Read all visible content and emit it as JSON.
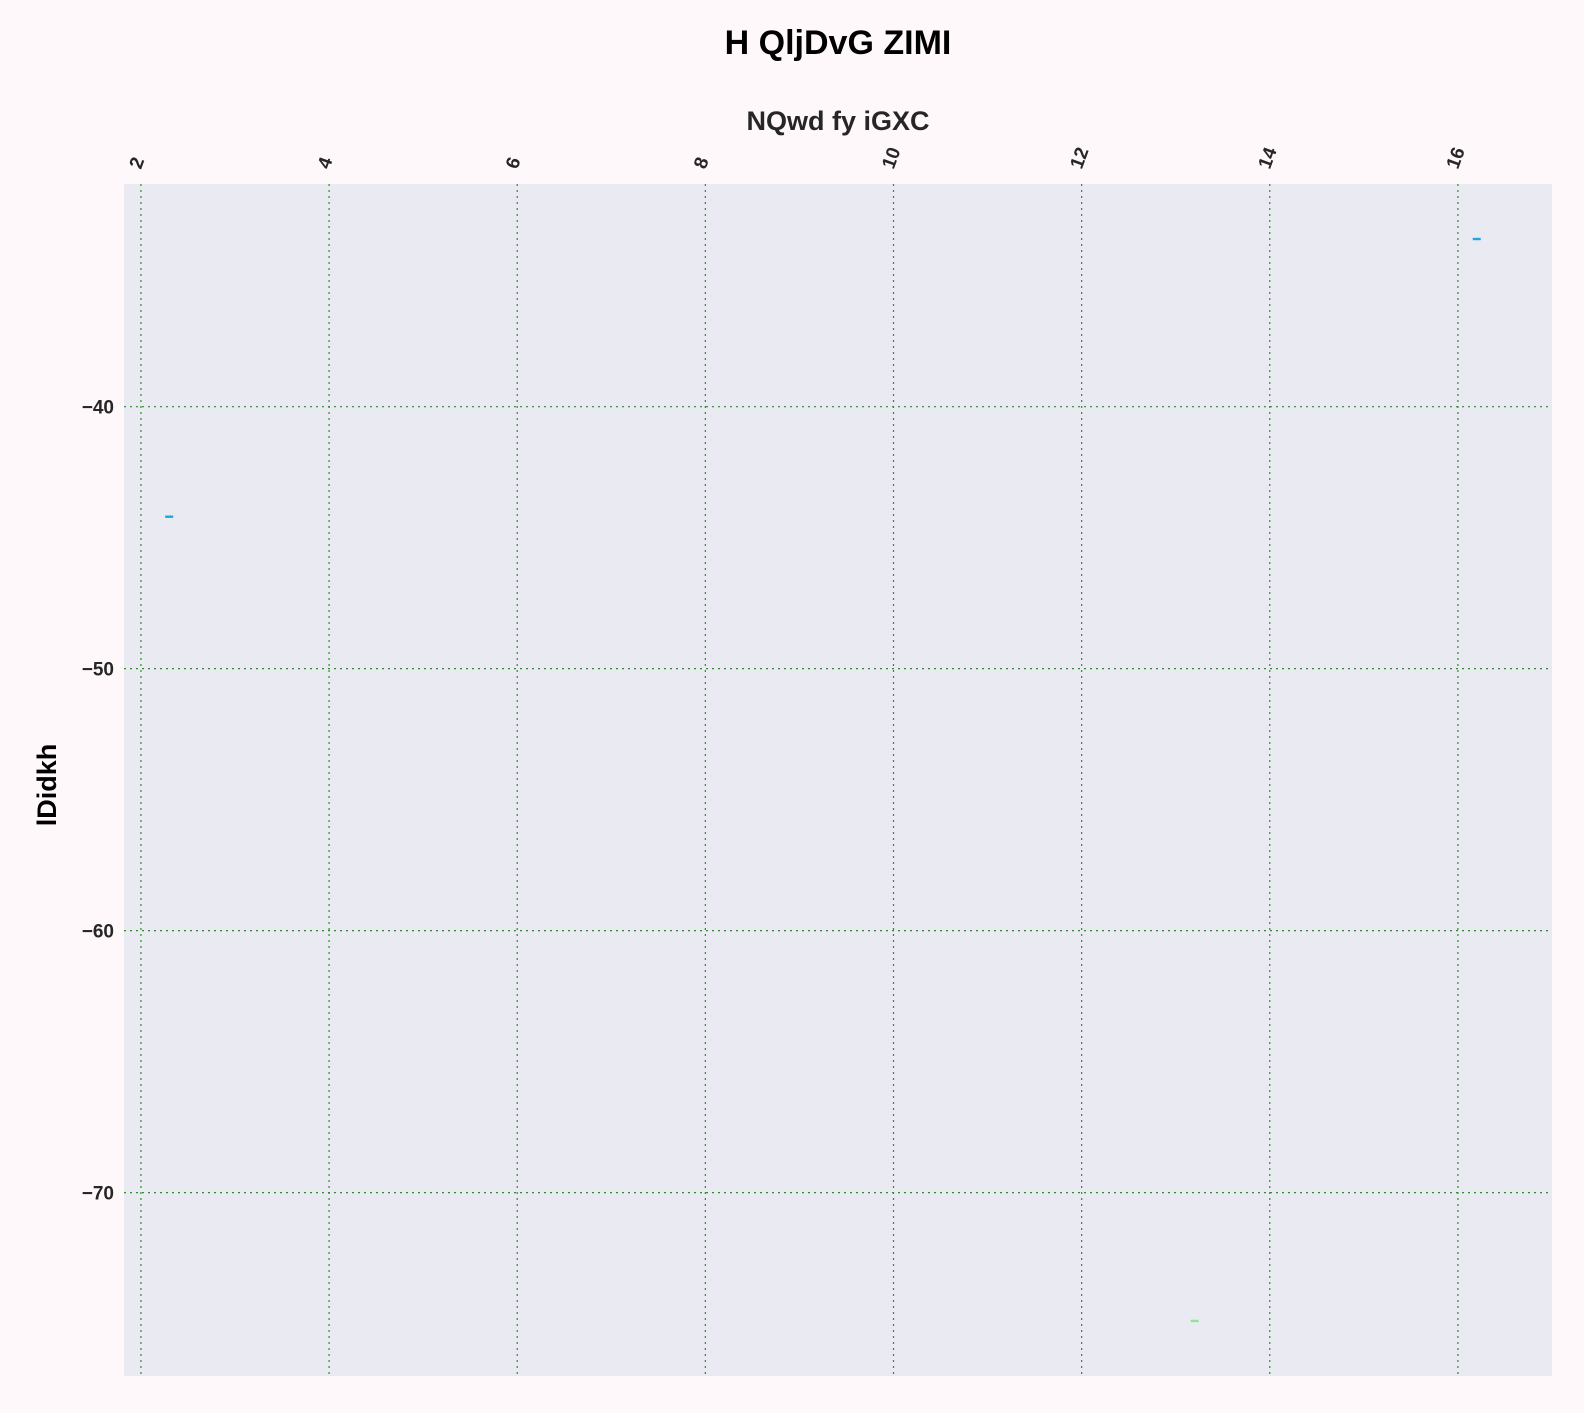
{
  "chart_data": {
    "type": "scatter",
    "title": "H QljDvG ZIMI",
    "xlabel": "NQwd fy iGXC",
    "ylabel": "lDidkh",
    "xlim": [
      1.82,
      17.0
    ],
    "ylim": [
      -77.0,
      -31.5
    ],
    "x_ticks": [
      2,
      4,
      6,
      8,
      10,
      12,
      14,
      16
    ],
    "y_ticks": [
      -40,
      -50,
      -60,
      -70
    ],
    "grid": true,
    "x_axis_position": "top",
    "marker": "short horizontal dash",
    "series": [
      {
        "color": "#1aa8e0",
        "points": [
          {
            "x": 2.3,
            "y": -44.2
          },
          {
            "x": 16.2,
            "y": -33.6
          }
        ]
      },
      {
        "color": "#8ee68e",
        "points": [
          {
            "x": 13.2,
            "y": -74.9
          }
        ]
      }
    ]
  },
  "colors": {
    "page_background": "#fff8fa",
    "plot_background": "#eaeaf2",
    "grid": "#2e8b2e"
  }
}
